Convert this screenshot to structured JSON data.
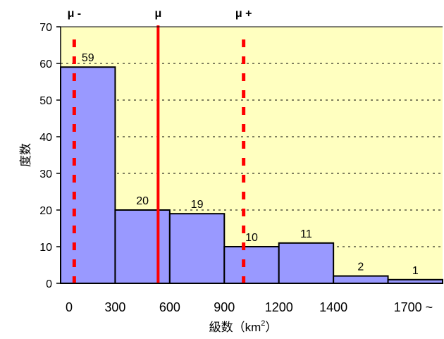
{
  "chart_data": {
    "type": "bar",
    "categories": [
      "0",
      "300",
      "600",
      "900",
      "1200",
      "1400",
      "1700 ~"
    ],
    "values": [
      59,
      20,
      19,
      10,
      11,
      2,
      1
    ],
    "ylim": [
      0,
      70
    ],
    "yticks": [
      0,
      10,
      20,
      30,
      40,
      50,
      60,
      70
    ],
    "xlabel": "級数（km",
    "xlabel_sup": "2",
    "xlabel_close": "）",
    "ylabel": "度数",
    "grid": true,
    "colors": {
      "plot_bg": "#ffffc0",
      "bar_fill": "#9999ff",
      "bar_stroke": "#000000",
      "marker": "#ff0000"
    },
    "markers": [
      {
        "label": "μ -",
        "x": 75,
        "style": "dashed"
      },
      {
        "label": "μ",
        "x": 536,
        "style": "solid"
      },
      {
        "label": "μ +",
        "x": 1006,
        "style": "dashed"
      }
    ]
  }
}
